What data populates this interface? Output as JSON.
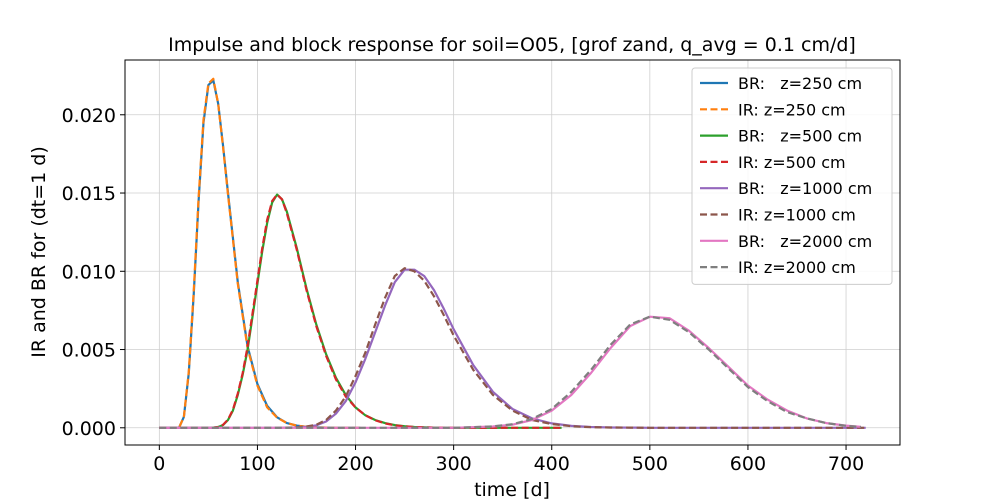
{
  "chart_data": {
    "type": "line",
    "title": "Impulse and block response for soil=O05, [grof zand, q_avg = 0.1 cm/d]",
    "xlabel": "time [d]",
    "ylabel": "IR and BR for (dt=1 d)",
    "xlim": [
      -35,
      755
    ],
    "ylim": [
      -0.0011,
      0.0235
    ],
    "xticks": [
      "0",
      "100",
      "200",
      "300",
      "400",
      "500",
      "600",
      "700"
    ],
    "xtick_values": [
      0,
      100,
      200,
      300,
      400,
      500,
      600,
      700
    ],
    "yticks": [
      "0.000",
      "0.005",
      "0.010",
      "0.015",
      "0.020"
    ],
    "ytick_values": [
      0,
      0.005,
      0.01,
      0.015,
      0.02
    ],
    "grid": true,
    "legend_position": "top-right",
    "series": [
      {
        "name": "BR:   z=250 cm",
        "color": "#1f77b4",
        "style": "solid",
        "x": [
          0,
          20,
          25,
          30,
          35,
          40,
          45,
          50,
          55,
          60,
          65,
          70,
          80,
          90,
          100,
          110,
          120,
          130,
          140,
          150,
          160,
          170,
          180,
          190,
          200,
          205
        ],
        "y": [
          0,
          0,
          0.0007,
          0.0035,
          0.0085,
          0.0145,
          0.0195,
          0.0219,
          0.0222,
          0.0207,
          0.018,
          0.015,
          0.0093,
          0.0052,
          0.0028,
          0.0014,
          0.00067,
          0.0003,
          0.00014,
          6e-05,
          3e-05,
          1e-05,
          0,
          0,
          0,
          0
        ]
      },
      {
        "name": "IR: z=250 cm",
        "color": "#ff7f0e",
        "style": "dashed",
        "x": [
          0,
          20,
          25,
          30,
          35,
          40,
          45,
          50,
          55,
          60,
          65,
          70,
          80,
          90,
          100,
          110,
          120,
          130,
          140,
          150,
          160,
          170,
          180,
          190,
          200,
          205
        ],
        "y": [
          0,
          0,
          0.0007,
          0.0036,
          0.0087,
          0.0147,
          0.0197,
          0.022,
          0.0223,
          0.0207,
          0.0179,
          0.0149,
          0.0092,
          0.0051,
          0.0027,
          0.0013,
          0.00065,
          0.0003,
          0.00014,
          6e-05,
          3e-05,
          1e-05,
          0,
          0,
          0,
          0
        ]
      },
      {
        "name": "BR:   z=500 cm",
        "color": "#2ca02c",
        "style": "solid",
        "x": [
          0,
          50,
          55,
          60,
          65,
          70,
          75,
          80,
          85,
          90,
          95,
          100,
          105,
          110,
          115,
          120,
          125,
          130,
          140,
          150,
          160,
          170,
          180,
          190,
          200,
          210,
          220,
          230,
          240,
          250,
          260,
          280,
          300,
          320,
          340,
          360,
          380,
          400,
          410
        ],
        "y": [
          0,
          0,
          1e-05,
          5e-05,
          0.00018,
          0.0005,
          0.0011,
          0.0021,
          0.0034,
          0.005,
          0.0071,
          0.0092,
          0.0113,
          0.0131,
          0.0144,
          0.0149,
          0.0146,
          0.0138,
          0.0115,
          0.0089,
          0.0066,
          0.0047,
          0.0032,
          0.0021,
          0.0013,
          0.0008,
          0.0005,
          0.0003,
          0.00017,
          0.0001,
          5e-05,
          1e-05,
          0,
          0,
          0,
          0,
          0,
          0,
          0
        ]
      },
      {
        "name": "IR: z=500 cm",
        "color": "#d62728",
        "style": "dashed",
        "x": [
          0,
          50,
          55,
          60,
          65,
          70,
          75,
          80,
          85,
          90,
          95,
          100,
          105,
          110,
          115,
          120,
          125,
          130,
          140,
          150,
          160,
          170,
          180,
          190,
          200,
          210,
          220,
          230,
          240,
          250,
          260,
          280,
          300,
          320,
          340,
          360,
          380,
          400,
          410
        ],
        "y": [
          0,
          0,
          1e-05,
          5e-05,
          0.00019,
          0.00052,
          0.00115,
          0.0022,
          0.0035,
          0.0052,
          0.0073,
          0.0094,
          0.0115,
          0.0133,
          0.0145,
          0.0149,
          0.0146,
          0.0137,
          0.0114,
          0.0088,
          0.0065,
          0.0046,
          0.0031,
          0.002,
          0.0013,
          0.0008,
          0.00048,
          0.00028,
          0.00016,
          9e-05,
          5e-05,
          1e-05,
          0,
          0,
          0,
          0,
          0,
          0,
          0
        ]
      },
      {
        "name": "BR:   z=1000 cm",
        "color": "#9467bd",
        "style": "solid",
        "x": [
          0,
          120,
          140,
          150,
          160,
          170,
          180,
          190,
          200,
          210,
          220,
          230,
          240,
          250,
          260,
          270,
          280,
          290,
          300,
          320,
          340,
          360,
          380,
          400,
          420,
          440,
          460,
          480,
          500,
          520,
          540,
          560,
          580,
          600,
          620,
          640,
          660,
          680,
          700,
          720
        ],
        "y": [
          0,
          0,
          2e-05,
          6e-05,
          0.00016,
          0.0004,
          0.0009,
          0.0017,
          0.0029,
          0.0044,
          0.0061,
          0.0078,
          0.0093,
          0.0101,
          0.0101,
          0.0097,
          0.0088,
          0.0076,
          0.0063,
          0.004,
          0.0023,
          0.0012,
          0.0006,
          0.00028,
          0.00012,
          5e-05,
          2e-05,
          1e-05,
          0,
          0,
          0,
          0,
          0,
          0,
          0,
          0,
          0,
          0,
          0,
          0
        ]
      },
      {
        "name": "IR: z=1000 cm",
        "color": "#8c564b",
        "style": "dashed",
        "x": [
          0,
          120,
          140,
          150,
          160,
          170,
          180,
          190,
          200,
          210,
          220,
          230,
          240,
          250,
          260,
          270,
          280,
          290,
          300,
          320,
          340,
          360,
          380,
          400,
          420,
          440,
          460,
          480,
          500,
          520,
          540,
          560,
          580,
          600,
          620,
          640,
          660,
          680,
          700,
          720
        ],
        "y": [
          0,
          0,
          3e-05,
          8e-05,
          0.0002,
          0.0005,
          0.0011,
          0.002,
          0.0033,
          0.0048,
          0.0066,
          0.0083,
          0.0097,
          0.0102,
          0.01,
          0.0094,
          0.0084,
          0.0072,
          0.0059,
          0.0037,
          0.0021,
          0.0011,
          0.0005,
          0.00024,
          0.0001,
          4e-05,
          2e-05,
          1e-05,
          0,
          0,
          0,
          0,
          0,
          0,
          0,
          0,
          0,
          0,
          0,
          0
        ]
      },
      {
        "name": "BR:   z=2000 cm",
        "color": "#e377c2",
        "style": "solid",
        "x": [
          0,
          300,
          340,
          360,
          380,
          400,
          420,
          440,
          460,
          480,
          500,
          520,
          540,
          560,
          580,
          600,
          620,
          640,
          660,
          680,
          700,
          715
        ],
        "y": [
          0,
          0,
          8e-05,
          0.0002,
          0.0005,
          0.0011,
          0.0021,
          0.0035,
          0.0051,
          0.0065,
          0.0071,
          0.007,
          0.0062,
          0.0051,
          0.0039,
          0.0027,
          0.0018,
          0.0011,
          0.0006,
          0.0003,
          0.00014,
          6e-05
        ]
      },
      {
        "name": "IR: z=2000 cm",
        "color": "#7f7f7f",
        "style": "dashed",
        "x": [
          0,
          300,
          340,
          360,
          380,
          400,
          420,
          440,
          460,
          480,
          500,
          520,
          540,
          560,
          580,
          600,
          620,
          640,
          660,
          680,
          700,
          715
        ],
        "y": [
          0,
          0,
          9e-05,
          0.00023,
          0.00056,
          0.0012,
          0.0023,
          0.0037,
          0.0053,
          0.0066,
          0.0071,
          0.0069,
          0.0061,
          0.005,
          0.0038,
          0.0026,
          0.0017,
          0.001,
          0.0006,
          0.0003,
          0.00013,
          5e-05
        ]
      }
    ]
  }
}
